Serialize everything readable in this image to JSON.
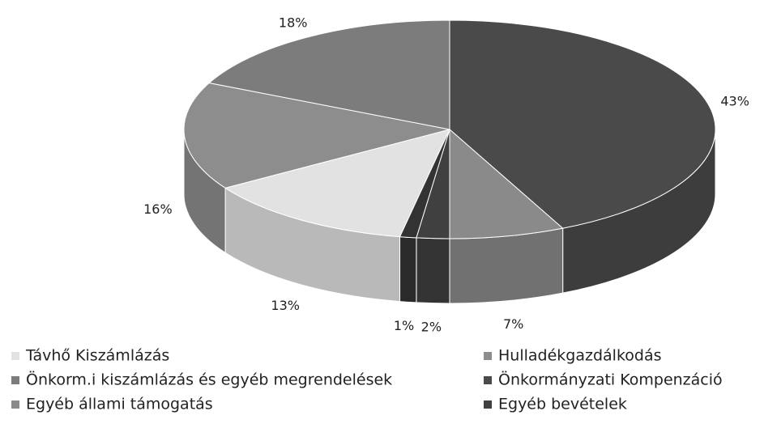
{
  "chart_data": {
    "type": "pie3d",
    "categories": [
      "Távhő Kiszámlázás",
      "Hulladékgazdálkodás",
      "Önkorm.i kiszámlázás és egyéb megrendelések",
      "Önkormányzati Kompenzáció",
      "Egyéb állami támogatás",
      "Egyéb bevételek",
      null
    ],
    "values": [
      13,
      16,
      18,
      43,
      7,
      2,
      1
    ],
    "value_labels": [
      "13%",
      "16%",
      "18%",
      "43%",
      "7%",
      "2%",
      "1%"
    ],
    "colors": [
      "#e2e2e2",
      "#8d8d8d",
      "#7c7c7c",
      "#4a4a4a",
      "#8a8a8a",
      "#404040",
      "#333333"
    ],
    "legend": "bottom"
  }
}
